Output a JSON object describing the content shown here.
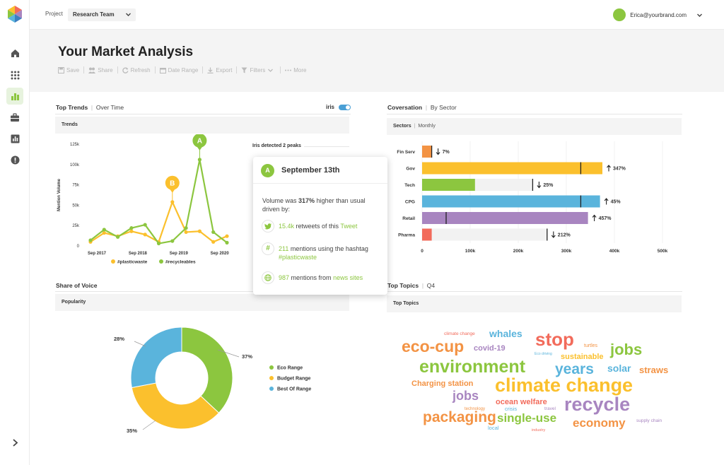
{
  "topbar": {
    "project_label": "Project",
    "project_value": "Research Team",
    "user_email": "Erica@yourbrand.com"
  },
  "header": {
    "title": "Your Market Analysis",
    "toolbar": [
      "Save",
      "Share",
      "Refresh",
      "Date Range",
      "Export",
      "Filters",
      "More"
    ]
  },
  "sidebar": {
    "items": [
      "home-icon",
      "apps-grid-icon",
      "bar-chart-icon",
      "briefcase-icon",
      "report-icon",
      "alert-icon"
    ],
    "active": "bar-chart-icon"
  },
  "colors": {
    "green": "#8cc63f",
    "yellow": "#fbc02d",
    "blue": "#5ab4dc",
    "orange": "#f39344",
    "purple": "#a885c0",
    "red": "#f26b5b"
  },
  "trends": {
    "title": "Top Trends",
    "subtitle": "Over Time",
    "toggle_label": "iris",
    "subbar": "Trends",
    "peaks_label": "Iris detected 2 peaks",
    "chart_data": {
      "type": "line",
      "ylabel": "Mention Volume",
      "yticks": [
        "125k",
        "100k",
        "75k",
        "50k",
        "25k",
        "0"
      ],
      "ylim": [
        0,
        125000
      ],
      "xticks": [
        "Sep 2017",
        "Sep 2018",
        "Sep 2019",
        "Sep 2020"
      ],
      "x": [
        0,
        1,
        2,
        3,
        4,
        5,
        6,
        7,
        8,
        9,
        10
      ],
      "series": [
        {
          "name": "#plasticwaste",
          "color": "#fbc02d",
          "values": [
            5000,
            16000,
            12000,
            18000,
            14000,
            5000,
            54000,
            17000,
            18000,
            5000,
            12000
          ]
        },
        {
          "name": "#recycleables",
          "color": "#8cc63f",
          "values": [
            7000,
            20000,
            11000,
            22000,
            26000,
            3000,
            6000,
            22000,
            106000,
            17000,
            4000
          ]
        }
      ],
      "annotations": [
        {
          "label": "A",
          "series": 1,
          "index": 8,
          "color": "#8cc63f"
        },
        {
          "label": "B",
          "series": 0,
          "index": 6,
          "color": "#fbc02d"
        }
      ]
    }
  },
  "tooltip": {
    "badge": "A",
    "date": "September 13th",
    "body_pre": "Volume was ",
    "body_bold": "317%",
    "body_post": " higher than usual driven by:",
    "rows": [
      {
        "icon": "twitter-icon",
        "value": "15.4k",
        "text": " retweets of this ",
        "link": "Tweet"
      },
      {
        "icon": "hashtag-icon",
        "value": "211",
        "text": " mentions using the hashtag ",
        "link": "#plasticwaste"
      },
      {
        "icon": "globe-icon",
        "value": "987",
        "text": " mentions from ",
        "link": "news sites"
      }
    ]
  },
  "sectors": {
    "title": "Coversation",
    "subtitle": "By Sector",
    "subbar": "Sectors",
    "subbar_sub": "Monthly",
    "chart_data": {
      "type": "bar",
      "orientation": "horizontal",
      "categories": [
        "Fin Serv",
        "Gov",
        "Tech",
        "CPG",
        "Retail",
        "Pharma"
      ],
      "values": [
        20000,
        375000,
        110000,
        370000,
        345000,
        20000
      ],
      "baseline": [
        20000,
        330000,
        230000,
        330000,
        50000,
        260000
      ],
      "change": [
        "7%",
        "347%",
        "25%",
        "45%",
        "457%",
        "212%"
      ],
      "direction": [
        "down",
        "up",
        "down",
        "up",
        "up",
        "down"
      ],
      "colors": [
        "#f39344",
        "#fbc02d",
        "#8cc63f",
        "#5ab4dc",
        "#a885c0",
        "#f26b5b"
      ],
      "xticks": [
        "0",
        "100k",
        "200k",
        "300k",
        "400k",
        "500k"
      ],
      "xlim": [
        0,
        500000
      ]
    }
  },
  "share": {
    "title": "Share of Voice",
    "subbar": "Popularity",
    "chart_data": {
      "type": "pie",
      "labels": [
        "Eco Range",
        "Budget Range",
        "Best Of Range"
      ],
      "values": [
        37,
        35,
        28
      ],
      "value_labels": [
        "37%",
        "35%",
        "28%"
      ],
      "colors": [
        "#8cc63f",
        "#fbc02d",
        "#5ab4dc"
      ]
    }
  },
  "topics": {
    "title": "Top Topics",
    "subtitle": "Q4",
    "subbar": "Top Topics",
    "words": [
      {
        "text": "climate change",
        "color": "#f26b5b"
      },
      {
        "text": "whales",
        "color": "#5ab4dc"
      },
      {
        "text": "stop",
        "color": "#f26b5b"
      },
      {
        "text": "turtles",
        "color": "#f39344"
      },
      {
        "text": "eco-cup",
        "color": "#f39344"
      },
      {
        "text": "covid-19",
        "color": "#a885c0"
      },
      {
        "text": "Eco driving",
        "color": "#5ab4dc"
      },
      {
        "text": "sustainable",
        "color": "#fbc02d"
      },
      {
        "text": "jobs",
        "color": "#8cc63f"
      },
      {
        "text": "environment",
        "color": "#8cc63f"
      },
      {
        "text": "years",
        "color": "#5ab4dc"
      },
      {
        "text": "solar",
        "color": "#5ab4dc"
      },
      {
        "text": "straws",
        "color": "#f39344"
      },
      {
        "text": "Charging station",
        "color": "#f39344"
      },
      {
        "text": "climate change",
        "color": "#fbc02d"
      },
      {
        "text": "jobs",
        "color": "#a885c0"
      },
      {
        "text": "ocean welfare",
        "color": "#f26b5b"
      },
      {
        "text": "recycle",
        "color": "#a885c0"
      },
      {
        "text": "technology",
        "color": "#f39344"
      },
      {
        "text": "crisis",
        "color": "#5ab4dc"
      },
      {
        "text": "travel",
        "color": "#a885c0"
      },
      {
        "text": "packaging",
        "color": "#f39344"
      },
      {
        "text": "single-use",
        "color": "#8cc63f"
      },
      {
        "text": "economy",
        "color": "#f39344"
      },
      {
        "text": "supply chain",
        "color": "#a885c0"
      },
      {
        "text": "local",
        "color": "#5ab4dc"
      },
      {
        "text": "industry",
        "color": "#f26b5b"
      }
    ]
  }
}
